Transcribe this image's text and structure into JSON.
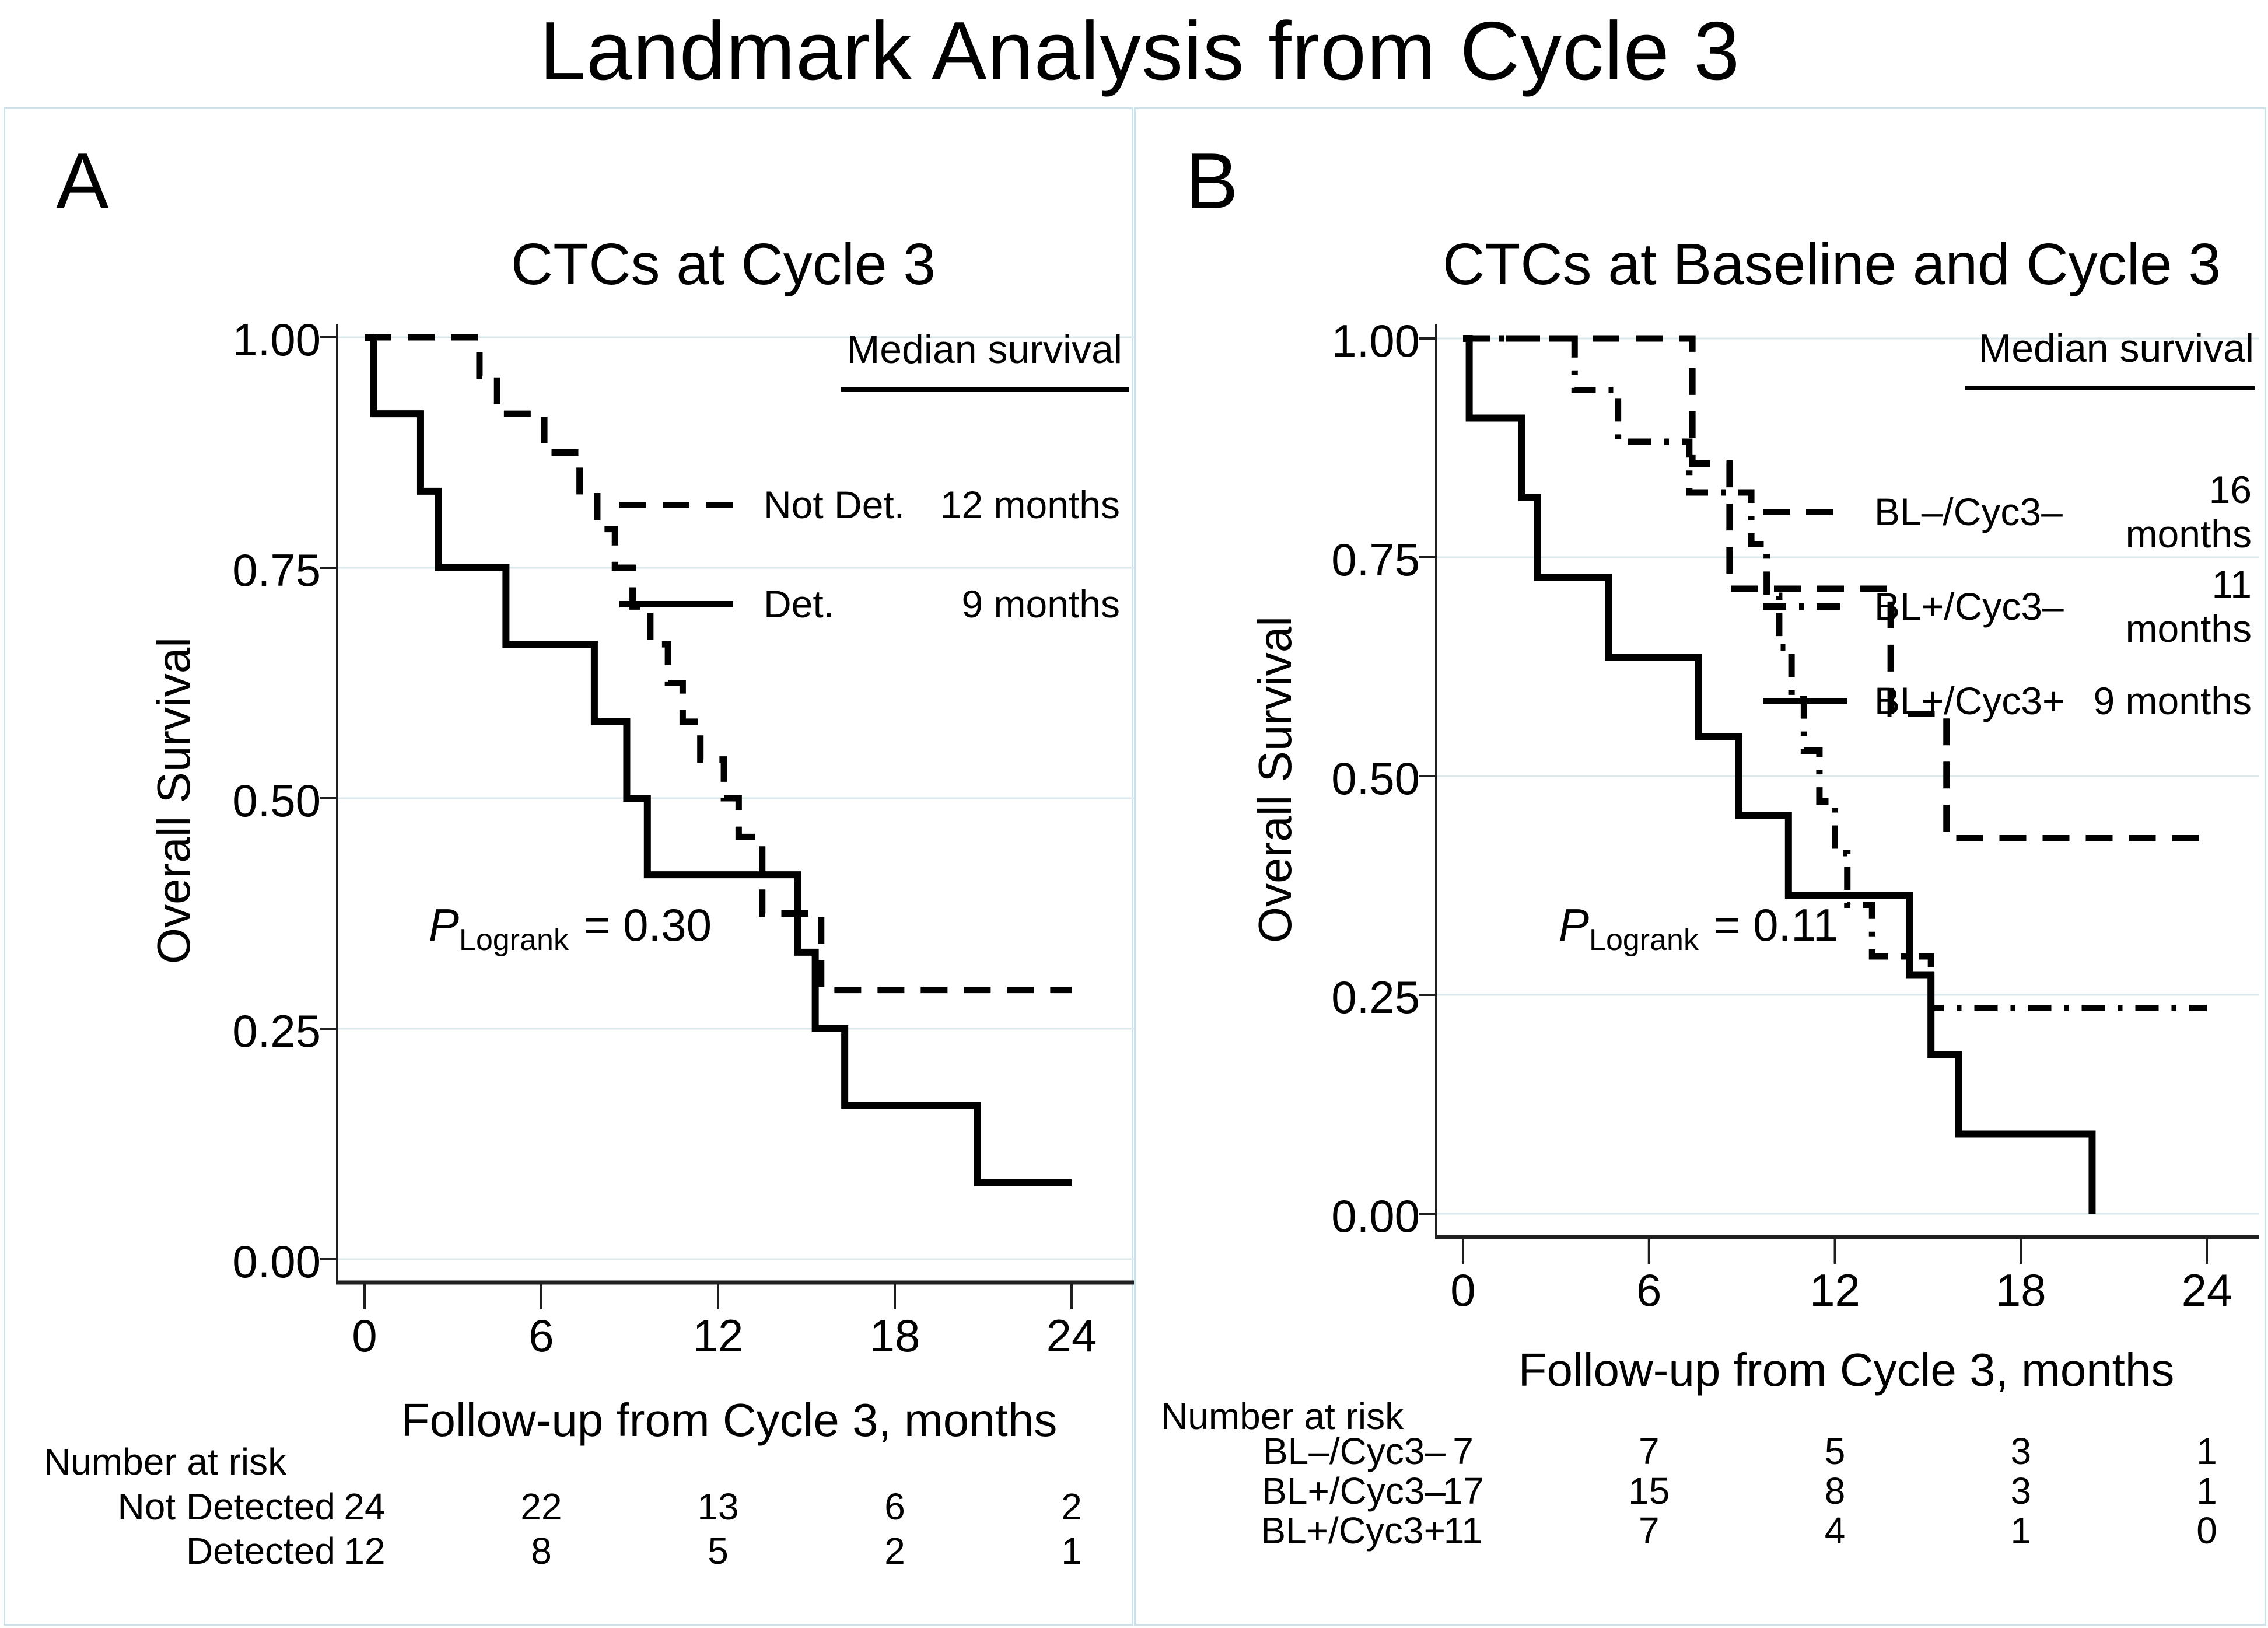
{
  "page_title": "Landmark Analysis from Cycle 3",
  "colors": {
    "background": "#ffffff",
    "curve": "#000000",
    "axis": "#1f1f1f",
    "gridline": "#dbe8ec",
    "panel_border": "#cfe0e6",
    "text": "#000000"
  },
  "chart_data": [
    {
      "panel_label": "A",
      "type": "line",
      "subtype": "kaplan_meier_step",
      "title": "CTCs at Cycle 3",
      "xlabel": "Follow-up from Cycle 3, months",
      "ylabel": "Overall Survival",
      "xlim": [
        0,
        24
      ],
      "ylim": [
        0,
        1
      ],
      "x_ticks": [
        "0",
        "6",
        "12",
        "18",
        "24"
      ],
      "y_ticks": [
        "1.00",
        "0.75",
        "0.50",
        "0.25",
        "0.00"
      ],
      "grid": "horizontal-on",
      "legend": {
        "position": "top-right",
        "header": "Median survival"
      },
      "p": {
        "symbol": "P",
        "sub": "Logrank",
        "value": "= 0.30"
      },
      "series": [
        {
          "name": "Not Det.",
          "median": "12 months",
          "style": "dashed",
          "color": "#000000",
          "end": 24,
          "steps": [
            [
              0,
              1.0
            ],
            [
              3.9,
              0.958
            ],
            [
              4.5,
              0.917
            ],
            [
              6.1,
              0.875
            ],
            [
              7.3,
              0.833
            ],
            [
              7.9,
              0.792
            ],
            [
              8.5,
              0.75
            ],
            [
              9.1,
              0.708
            ],
            [
              9.7,
              0.667
            ],
            [
              10.3,
              0.625
            ],
            [
              10.8,
              0.583
            ],
            [
              11.4,
              0.542
            ],
            [
              12.2,
              0.5
            ],
            [
              12.7,
              0.458
            ],
            [
              13.5,
              0.375
            ],
            [
              15.5,
              0.292
            ]
          ]
        },
        {
          "name": "Det.",
          "median": "9 months",
          "style": "solid",
          "color": "#000000",
          "end": 24,
          "steps": [
            [
              0,
              1.0
            ],
            [
              0.3,
              0.917
            ],
            [
              1.9,
              0.833
            ],
            [
              2.5,
              0.75
            ],
            [
              4.8,
              0.667
            ],
            [
              7.8,
              0.583
            ],
            [
              8.9,
              0.5
            ],
            [
              9.6,
              0.417
            ],
            [
              14.7,
              0.333
            ],
            [
              15.3,
              0.25
            ],
            [
              16.3,
              0.167
            ],
            [
              20.8,
              0.083
            ]
          ]
        }
      ],
      "number_at_risk": {
        "header": "Number at risk",
        "rows": [
          {
            "label": "Not Detected",
            "counts": [
              "24",
              "22",
              "13",
              "6",
              "2"
            ]
          },
          {
            "label": "Detected",
            "counts": [
              "12",
              "8",
              "5",
              "2",
              "1"
            ]
          }
        ]
      }
    },
    {
      "panel_label": "B",
      "type": "line",
      "subtype": "kaplan_meier_step",
      "title": "CTCs at Baseline and Cycle 3",
      "xlabel": "Follow-up from Cycle 3, months",
      "ylabel": "Overall Survival",
      "xlim": [
        0,
        24
      ],
      "ylim": [
        0,
        1
      ],
      "x_ticks": [
        "0",
        "6",
        "12",
        "18",
        "24"
      ],
      "y_ticks": [
        "1.00",
        "0.75",
        "0.50",
        "0.25",
        "0.00"
      ],
      "grid": "horizontal-on",
      "legend": {
        "position": "top-right",
        "header": "Median survival"
      },
      "p": {
        "symbol": "P",
        "sub": "Logrank",
        "value": "= 0.11"
      },
      "series": [
        {
          "name": "BL–/Cyc3–",
          "median": "16 months",
          "style": "dashed",
          "color": "#000000",
          "end": 24,
          "steps": [
            [
              0,
              1.0
            ],
            [
              7.4,
              0.857
            ],
            [
              8.6,
              0.714
            ],
            [
              13.8,
              0.571
            ],
            [
              15.6,
              0.429
            ]
          ]
        },
        {
          "name": "BL+/Cyc3–",
          "median": "11 months",
          "style": "dashdot",
          "color": "#000000",
          "end": 24,
          "steps": [
            [
              0,
              1.0
            ],
            [
              3.6,
              0.941
            ],
            [
              5.0,
              0.882
            ],
            [
              7.3,
              0.824
            ],
            [
              9.3,
              0.765
            ],
            [
              9.8,
              0.706
            ],
            [
              10.2,
              0.647
            ],
            [
              10.6,
              0.588
            ],
            [
              11.0,
              0.529
            ],
            [
              11.5,
              0.471
            ],
            [
              12.0,
              0.412
            ],
            [
              12.4,
              0.353
            ],
            [
              13.2,
              0.294
            ],
            [
              15.1,
              0.235
            ]
          ]
        },
        {
          "name": "BL+/Cyc3+",
          "median": "9 months",
          "style": "solid",
          "color": "#000000",
          "end": 20.3,
          "steps": [
            [
              0,
              1.0
            ],
            [
              0.2,
              0.909
            ],
            [
              1.9,
              0.818
            ],
            [
              2.4,
              0.727
            ],
            [
              4.7,
              0.636
            ],
            [
              7.6,
              0.545
            ],
            [
              8.9,
              0.455
            ],
            [
              10.5,
              0.364
            ],
            [
              14.4,
              0.273
            ],
            [
              15.1,
              0.182
            ],
            [
              16.0,
              0.091
            ],
            [
              20.3,
              0.0
            ]
          ]
        }
      ],
      "number_at_risk": {
        "header": "Number at risk",
        "rows": [
          {
            "label": "BL–/Cyc3–",
            "counts": [
              "7",
              "7",
              "5",
              "3",
              "1"
            ]
          },
          {
            "label": "BL+/Cyc3–",
            "counts": [
              "17",
              "15",
              "8",
              "3",
              "1"
            ]
          },
          {
            "label": "BL+/Cyc3+",
            "counts": [
              "11",
              "7",
              "4",
              "1",
              "0"
            ]
          }
        ]
      }
    }
  ]
}
